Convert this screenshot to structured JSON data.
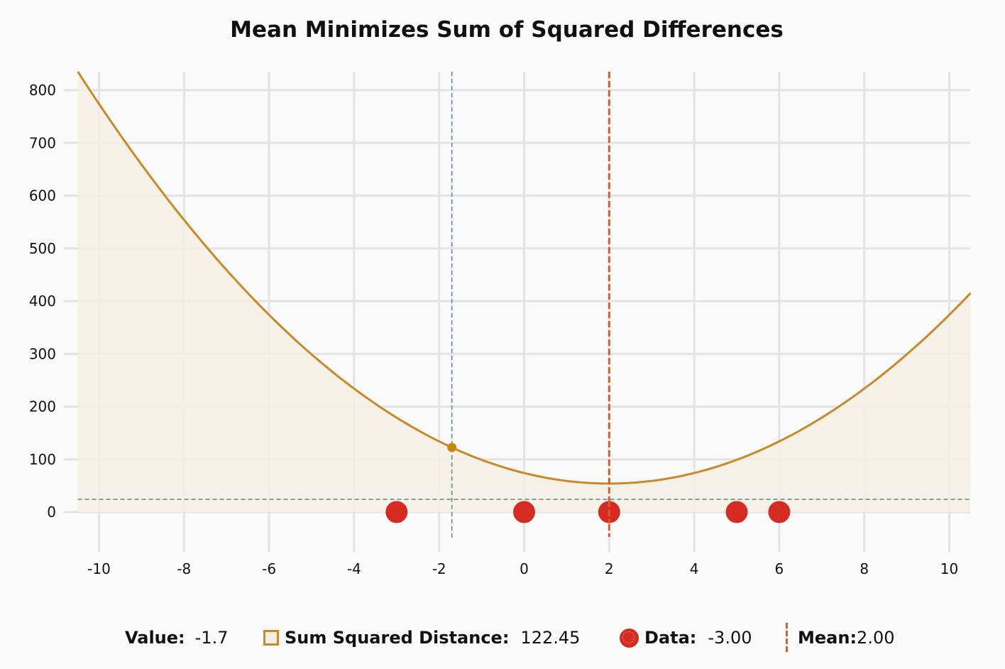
{
  "chart_data": {
    "type": "line",
    "title": "Mean Minimizes Sum of Squared Differences",
    "xlabel": "",
    "ylabel": "",
    "xlim": [
      -10.5,
      10.5
    ],
    "ylim": [
      0,
      800
    ],
    "x_ticks": [
      -10,
      -8,
      -6,
      -4,
      -2,
      0,
      2,
      4,
      6,
      8,
      10
    ],
    "y_ticks": [
      0,
      100,
      200,
      300,
      400,
      500,
      600,
      700,
      800
    ],
    "grid": true,
    "data_points": [
      -3,
      0,
      2,
      5,
      6
    ],
    "series": [
      {
        "name": "Sum Squared Distance",
        "function": "sum((x - d)^2 for d in data_points)",
        "x_range": [
          -10.5,
          10.5
        ],
        "color": "#c8882c",
        "fill": "#f3eee3"
      }
    ],
    "mean": 2.0,
    "cursor": {
      "x": -1.7,
      "y": 122.45
    },
    "reference_hline": 24,
    "legend_position": "bottom"
  },
  "colors": {
    "curve": "#c8882c",
    "fill": "#f3eee3",
    "data_point": "#d42b22",
    "mean_line": "#e35a1e",
    "cursor_line": "#6b7d8c",
    "cursor_dot": "#c8860f",
    "grid": "#e3e3e3"
  },
  "legend": {
    "value_label": "Value:",
    "value": "-1.7",
    "ssd_label": "Sum Squared Distance:",
    "ssd_value": "122.45",
    "data_label": "Data:",
    "data_value": "-3.00",
    "mean_label": "Mean:",
    "mean_value": "2.00"
  }
}
